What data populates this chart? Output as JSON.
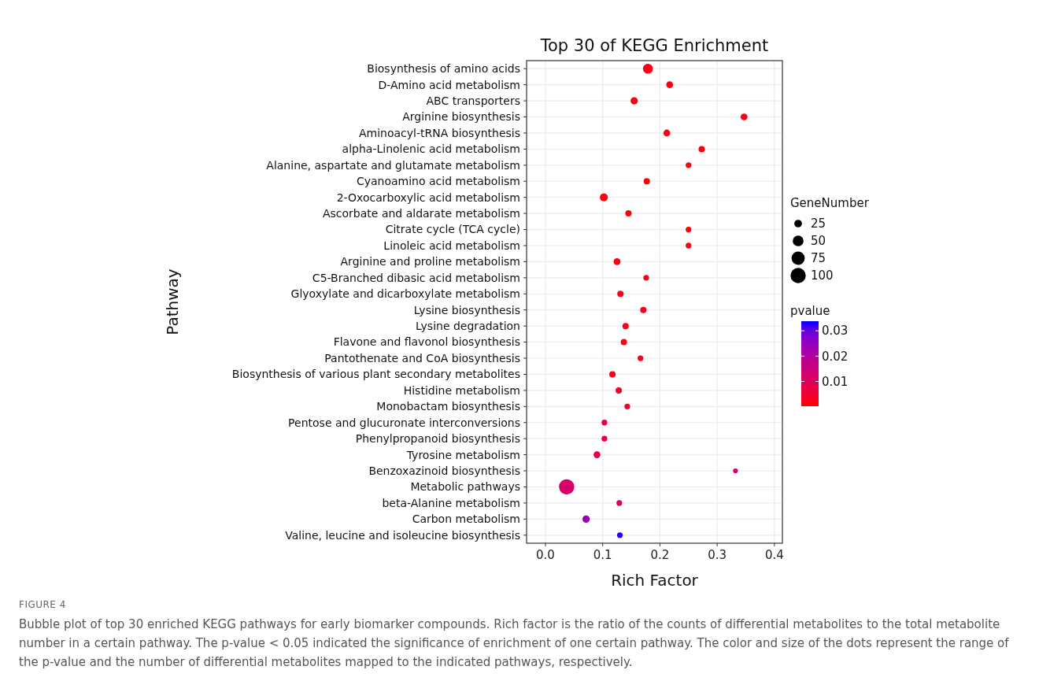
{
  "chart_data": {
    "type": "scatter",
    "orientation": "horizontal",
    "title": "Top 30 of KEGG Enrichment",
    "xlabel": "Rich Factor",
    "ylabel": "Pathway",
    "legend_title": "GeneNumber",
    "clabel": "pvalue",
    "categories": [
      "Biosynthesis of amino acids",
      "D-Amino acid metabolism",
      "ABC transporters",
      "Arginine biosynthesis",
      "Aminoacyl-tRNA biosynthesis",
      "alpha-Linolenic acid metabolism",
      "Alanine, aspartate and glutamate metabolism",
      "Cyanoamino acid metabolism",
      "2-Oxocarboxylic acid metabolism",
      "Ascorbate and aldarate metabolism",
      "Citrate cycle (TCA cycle)",
      "Linoleic acid metabolism",
      "Arginine and proline metabolism",
      "C5-Branched dibasic acid metabolism",
      "Glyoxylate and dicarboxylate metabolism",
      "Lysine biosynthesis",
      "Lysine degradation",
      "Flavone and flavonol biosynthesis",
      "Pantothenate and CoA biosynthesis",
      "Biosynthesis of various plant secondary metabolites",
      "Histidine metabolism",
      "Monobactam biosynthesis",
      "Pentose and glucuronate interconversions",
      "Phenylpropanoid biosynthesis",
      "Tyrosine metabolism",
      "Benzoxazinoid biosynthesis",
      "Metabolic pathways",
      "beta-Alanine metabolism",
      "Carbon metabolism",
      "Valine, leucine and isoleucine biosynthesis"
    ],
    "values": [
      0.179,
      0.217,
      0.155,
      0.347,
      0.212,
      0.273,
      0.25,
      0.177,
      0.102,
      0.145,
      0.25,
      0.25,
      0.125,
      0.176,
      0.131,
      0.171,
      0.14,
      0.137,
      0.166,
      0.117,
      0.128,
      0.143,
      0.103,
      0.103,
      0.09,
      0.332,
      0.037,
      0.129,
      0.071,
      0.13
    ],
    "sizes": [
      42,
      20,
      23,
      20,
      20,
      17,
      14,
      17,
      27,
      17,
      14,
      14,
      20,
      14,
      17,
      17,
      17,
      17,
      14,
      17,
      17,
      14,
      14,
      14,
      20,
      10,
      100,
      14,
      23,
      14
    ],
    "cvalues": [
      0.001,
      0.001,
      0.001,
      0.001,
      0.001,
      0.001,
      0.001,
      0.001,
      0.001,
      0.001,
      0.001,
      0.001,
      0.001,
      0.001,
      0.002,
      0.002,
      0.002,
      0.002,
      0.002,
      0.002,
      0.003,
      0.003,
      0.006,
      0.006,
      0.007,
      0.012,
      0.012,
      0.011,
      0.024,
      0.033
    ],
    "size_legend": [
      25,
      50,
      75,
      100
    ],
    "clim": [
      0.0002,
      0.0338
    ],
    "cticks": [
      0.01,
      0.02,
      0.03
    ],
    "xlim": [
      -0.033,
      0.414
    ],
    "xticks": [
      {
        "value": 0,
        "label": "0.0"
      },
      0.1,
      0.2,
      0.3,
      0.4
    ],
    "grid": true,
    "annotations": [
      "FIGURE 4",
      "Bubble plot of top 30 enriched KEGG pathways for early biomarker compounds. Rich factor is the ratio of the counts of differential metabolites to the total metabolite number in a certain pathway. The p-value < 0.05 indicated the significance of enrichment of one certain pathway. The color and size of the dots represent the range of the p-value and the number of differential metabolites mapped to the indicated pathways, respectively."
    ]
  }
}
